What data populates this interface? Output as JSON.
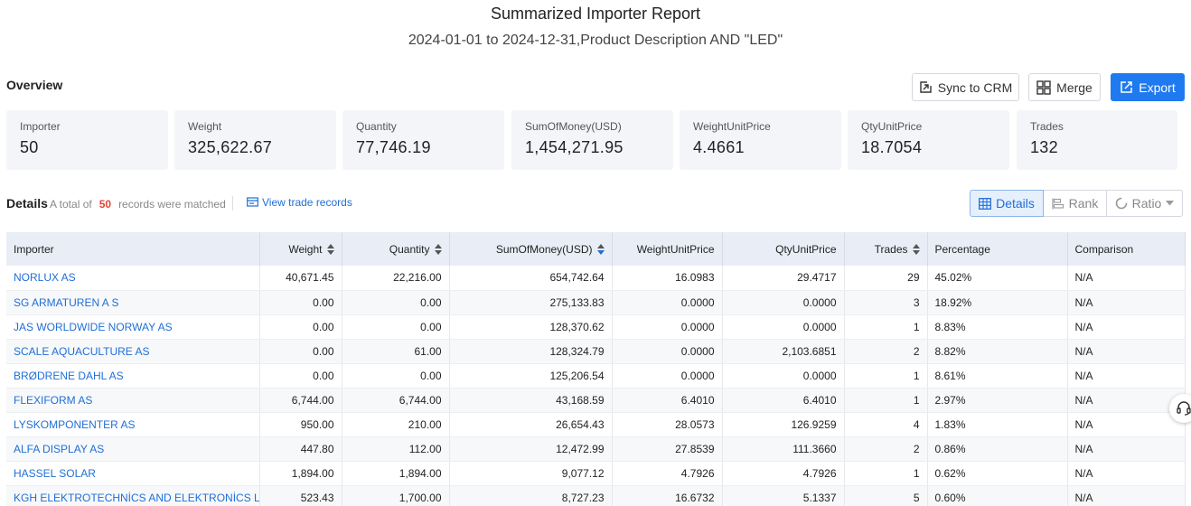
{
  "report": {
    "title": "Summarized Importer Report",
    "subtitle": "2024-01-01 to 2024-12-31,Product Description AND \"LED\""
  },
  "overview": {
    "label": "Overview",
    "actions": {
      "sync": "Sync to CRM",
      "merge": "Merge",
      "export": "Export"
    },
    "cards": [
      {
        "label": "Importer",
        "value": "50"
      },
      {
        "label": "Weight",
        "value": "325,622.67"
      },
      {
        "label": "Quantity",
        "value": "77,746.19"
      },
      {
        "label": "SumOfMoney(USD)",
        "value": "1,454,271.95"
      },
      {
        "label": "WeightUnitPrice",
        "value": "4.4661"
      },
      {
        "label": "QtyUnitPrice",
        "value": "18.7054"
      },
      {
        "label": "Trades",
        "value": "132"
      }
    ]
  },
  "details": {
    "label": "Details",
    "total_prefix": "A total of",
    "total_count": "50",
    "total_suffix": "records were matched",
    "view_link": "View trade records",
    "views": {
      "details": "Details",
      "rank": "Rank",
      "ratio": "Ratio"
    }
  },
  "table": {
    "headers": [
      "Importer",
      "Weight",
      "Quantity",
      "SumOfMoney(USD)",
      "WeightUnitPrice",
      "QtyUnitPrice",
      "Trades",
      "Percentage",
      "Comparison"
    ],
    "rows": [
      [
        "NORLUX AS",
        "40,671.45",
        "22,216.00",
        "654,742.64",
        "16.0983",
        "29.4717",
        "29",
        "45.02%",
        "N/A"
      ],
      [
        "SG ARMATUREN A S",
        "0.00",
        "0.00",
        "275,133.83",
        "0.0000",
        "0.0000",
        "3",
        "18.92%",
        "N/A"
      ],
      [
        "JAS WORLDWIDE NORWAY AS",
        "0.00",
        "0.00",
        "128,370.62",
        "0.0000",
        "0.0000",
        "1",
        "8.83%",
        "N/A"
      ],
      [
        "SCALE AQUACULTURE AS",
        "0.00",
        "61.00",
        "128,324.79",
        "0.0000",
        "2,103.6851",
        "2",
        "8.82%",
        "N/A"
      ],
      [
        "BRØDRENE DAHL AS",
        "0.00",
        "0.00",
        "125,206.54",
        "0.0000",
        "0.0000",
        "1",
        "8.61%",
        "N/A"
      ],
      [
        "FLEXIFORM AS",
        "6,744.00",
        "6,744.00",
        "43,168.59",
        "6.4010",
        "6.4010",
        "1",
        "2.97%",
        "N/A"
      ],
      [
        "LYSKOMPONENTER AS",
        "950.00",
        "210.00",
        "26,654.43",
        "28.0573",
        "126.9259",
        "4",
        "1.83%",
        "N/A"
      ],
      [
        "ALFA DISPLAY AS",
        "447.80",
        "112.00",
        "12,472.99",
        "27.8539",
        "111.3660",
        "2",
        "0.86%",
        "N/A"
      ],
      [
        "HASSEL SOLAR",
        "1,894.00",
        "1,894.00",
        "9,077.12",
        "4.7926",
        "4.7926",
        "1",
        "0.62%",
        "N/A"
      ],
      [
        "KGH ELEKTROTECHNİCS AND ELEKTRONİCS LTD",
        "523.43",
        "1,700.00",
        "8,727.23",
        "16.6732",
        "5.1337",
        "5",
        "0.60%",
        "N/A"
      ]
    ]
  },
  "icons": {
    "sync": "sync-to-crm-icon",
    "merge": "merge-icon",
    "export": "export-icon",
    "view_records": "records-icon",
    "details_view": "table-icon",
    "rank_view": "rank-bars-icon",
    "ratio_view": "ratio-donut-icon",
    "support": "headset-icon"
  },
  "colors": {
    "accent": "#1f7af0",
    "link": "#1f6fd6",
    "highlight_count": "#e0463c",
    "header_bg": "#e9edf5",
    "card_bg": "#f4f5f8"
  }
}
